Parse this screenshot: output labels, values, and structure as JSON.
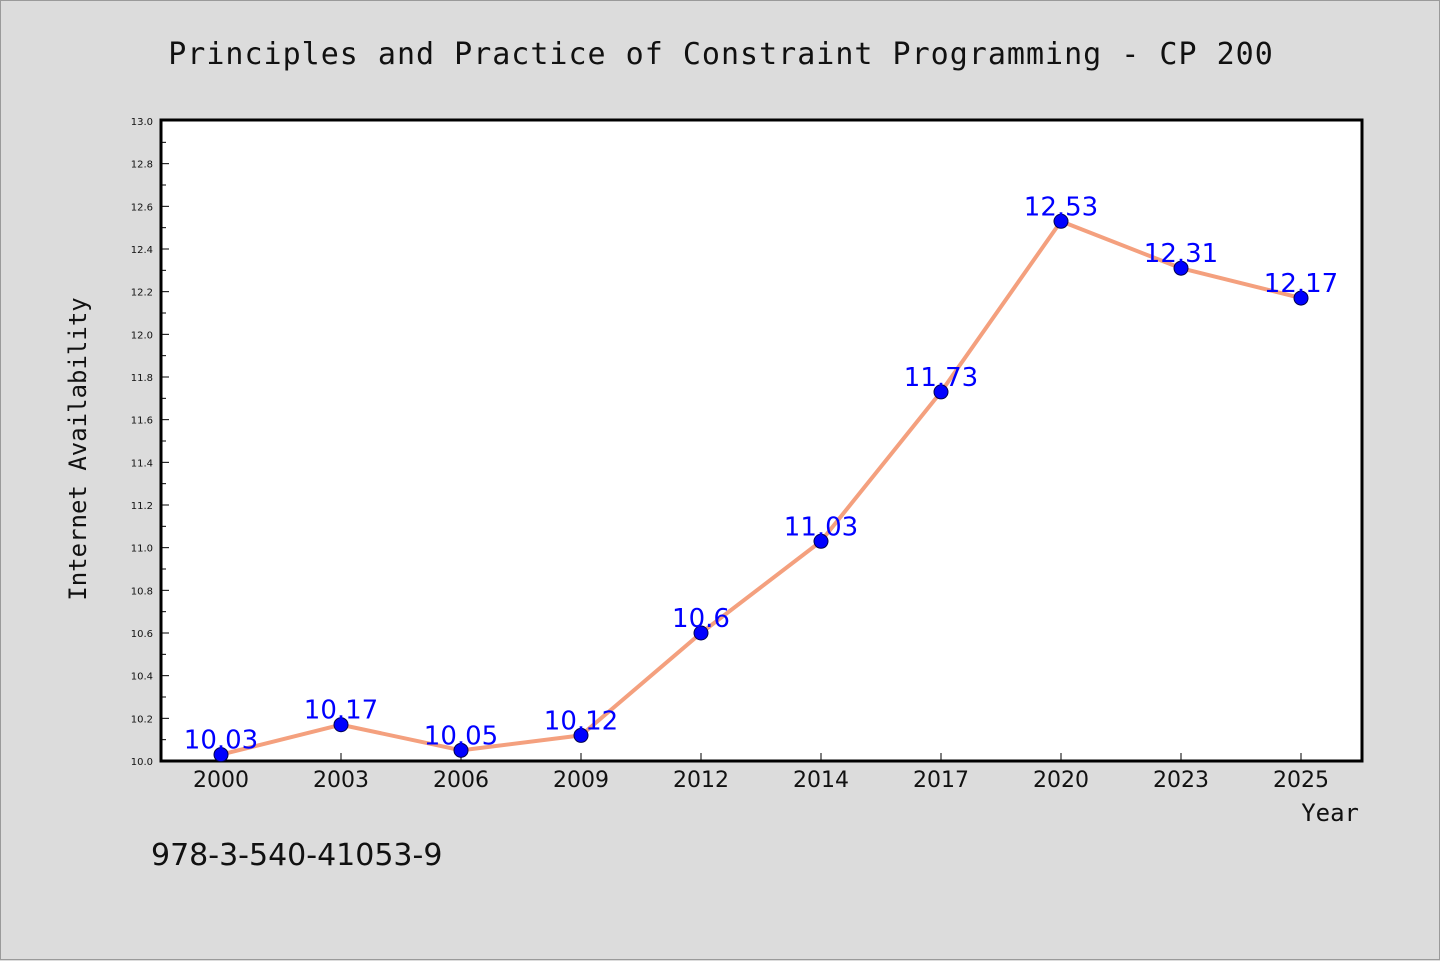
{
  "chart_data": {
    "type": "line",
    "title": "Principles and Practice of Constraint Programming - CP 200",
    "xlabel": "Year",
    "ylabel": "Internet Availability",
    "categories": [
      "2000",
      "2003",
      "2006",
      "2009",
      "2012",
      "2014",
      "2017",
      "2020",
      "2023",
      "2025"
    ],
    "series": [
      {
        "values": [
          10.03,
          10.17,
          10.05,
          10.12,
          10.6,
          11.03,
          11.73,
          12.53,
          12.31,
          12.17
        ]
      }
    ],
    "data_labels": [
      "10.03",
      "10.17",
      "10.05",
      "10.12",
      "10.6",
      "11.03",
      "11.73",
      "12.53",
      "12.31",
      "12.17"
    ],
    "ylim": [
      10.0,
      13.0
    ],
    "yticks": [
      "10.0",
      "10.2",
      "10.4",
      "10.6",
      "10.8",
      "11.0",
      "11.2",
      "11.4",
      "11.6",
      "11.8",
      "12.0",
      "12.2",
      "12.4",
      "12.6",
      "12.8",
      "13.0"
    ],
    "grid": false,
    "legend": "none",
    "colors": {
      "line": "#f4a07e",
      "marker": "#0000ff",
      "marker_edge": "#00004d",
      "label": "#0000ff",
      "background": "#dcdcdc",
      "plot_background": "#ffffff"
    }
  },
  "footer_text": "978-3-540-41053-9"
}
